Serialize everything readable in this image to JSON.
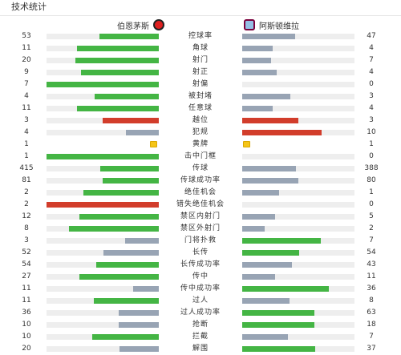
{
  "title": "技术统计",
  "teams": {
    "home": {
      "name": "伯恩茅斯",
      "crest_icon": "bournemouth-crest-icon"
    },
    "away": {
      "name": "阿斯顿维拉",
      "crest_icon": "aston-villa-crest-icon"
    }
  },
  "colors": {
    "green": "#44b544",
    "gray": "#98a4b4",
    "red": "#d23d2b",
    "yellow": "#f5c518",
    "track": "#eeeeee"
  },
  "stats": [
    {
      "label": "控球率",
      "home": "53",
      "away": "47",
      "home_fill": 0.53,
      "away_fill": 0.47,
      "home_color": "green",
      "away_color": "gray"
    },
    {
      "label": "角球",
      "home": "11",
      "away": "4",
      "home_fill": 0.73,
      "away_fill": 0.27,
      "home_color": "green",
      "away_color": "gray"
    },
    {
      "label": "射门",
      "home": "20",
      "away": "7",
      "home_fill": 0.74,
      "away_fill": 0.26,
      "home_color": "green",
      "away_color": "gray"
    },
    {
      "label": "射正",
      "home": "9",
      "away": "4",
      "home_fill": 0.69,
      "away_fill": 0.31,
      "home_color": "green",
      "away_color": "gray"
    },
    {
      "label": "射偏",
      "home": "7",
      "away": "0",
      "home_fill": 1.0,
      "away_fill": 0.0,
      "home_color": "green",
      "away_color": "gray"
    },
    {
      "label": "被封堵",
      "home": "4",
      "away": "3",
      "home_fill": 0.57,
      "away_fill": 0.43,
      "home_color": "green",
      "away_color": "gray"
    },
    {
      "label": "任意球",
      "home": "11",
      "away": "4",
      "home_fill": 0.73,
      "away_fill": 0.27,
      "home_color": "green",
      "away_color": "gray"
    },
    {
      "label": "越位",
      "home": "3",
      "away": "3",
      "home_fill": 0.5,
      "away_fill": 0.5,
      "home_color": "red",
      "away_color": "red"
    },
    {
      "label": "犯规",
      "home": "4",
      "away": "10",
      "home_fill": 0.29,
      "away_fill": 0.71,
      "home_color": "gray",
      "away_color": "red"
    },
    {
      "label": "黄牌",
      "home": "1",
      "away": "1",
      "card": true
    },
    {
      "label": "击中门框",
      "home": "1",
      "away": "0",
      "home_fill": 1.0,
      "away_fill": 0.0,
      "home_color": "green",
      "away_color": "gray"
    },
    {
      "label": "传球",
      "home": "415",
      "away": "388",
      "home_fill": 0.52,
      "away_fill": 0.48,
      "home_color": "green",
      "away_color": "gray"
    },
    {
      "label": "传球成功率",
      "home": "81",
      "away": "80",
      "home_fill": 0.5,
      "away_fill": 0.5,
      "home_color": "green",
      "away_color": "gray"
    },
    {
      "label": "绝佳机会",
      "home": "2",
      "away": "1",
      "home_fill": 0.67,
      "away_fill": 0.33,
      "home_color": "green",
      "away_color": "gray"
    },
    {
      "label": "错失绝佳机会",
      "home": "2",
      "away": "0",
      "home_fill": 1.0,
      "away_fill": 0.0,
      "home_color": "red",
      "away_color": "gray"
    },
    {
      "label": "禁区内射门",
      "home": "12",
      "away": "5",
      "home_fill": 0.71,
      "away_fill": 0.29,
      "home_color": "green",
      "away_color": "gray"
    },
    {
      "label": "禁区外射门",
      "home": "8",
      "away": "2",
      "home_fill": 0.8,
      "away_fill": 0.2,
      "home_color": "green",
      "away_color": "gray"
    },
    {
      "label": "门将扑救",
      "home": "3",
      "away": "7",
      "home_fill": 0.3,
      "away_fill": 0.7,
      "home_color": "gray",
      "away_color": "green"
    },
    {
      "label": "长传",
      "home": "52",
      "away": "54",
      "home_fill": 0.49,
      "away_fill": 0.51,
      "home_color": "gray",
      "away_color": "green"
    },
    {
      "label": "长传成功率",
      "home": "54",
      "away": "43",
      "home_fill": 0.56,
      "away_fill": 0.44,
      "home_color": "green",
      "away_color": "gray"
    },
    {
      "label": "传中",
      "home": "27",
      "away": "11",
      "home_fill": 0.71,
      "away_fill": 0.29,
      "home_color": "green",
      "away_color": "gray"
    },
    {
      "label": "传中成功率",
      "home": "11",
      "away": "36",
      "home_fill": 0.23,
      "away_fill": 0.77,
      "home_color": "gray",
      "away_color": "green"
    },
    {
      "label": "过人",
      "home": "11",
      "away": "8",
      "home_fill": 0.58,
      "away_fill": 0.42,
      "home_color": "green",
      "away_color": "gray"
    },
    {
      "label": "过人成功率",
      "home": "36",
      "away": "63",
      "home_fill": 0.36,
      "away_fill": 0.64,
      "home_color": "gray",
      "away_color": "green"
    },
    {
      "label": "抢断",
      "home": "10",
      "away": "18",
      "home_fill": 0.36,
      "away_fill": 0.64,
      "home_color": "gray",
      "away_color": "green"
    },
    {
      "label": "拦截",
      "home": "10",
      "away": "7",
      "home_fill": 0.59,
      "away_fill": 0.41,
      "home_color": "green",
      "away_color": "gray"
    },
    {
      "label": "解围",
      "home": "20",
      "away": "37",
      "home_fill": 0.35,
      "away_fill": 0.65,
      "home_color": "gray",
      "away_color": "green"
    }
  ]
}
